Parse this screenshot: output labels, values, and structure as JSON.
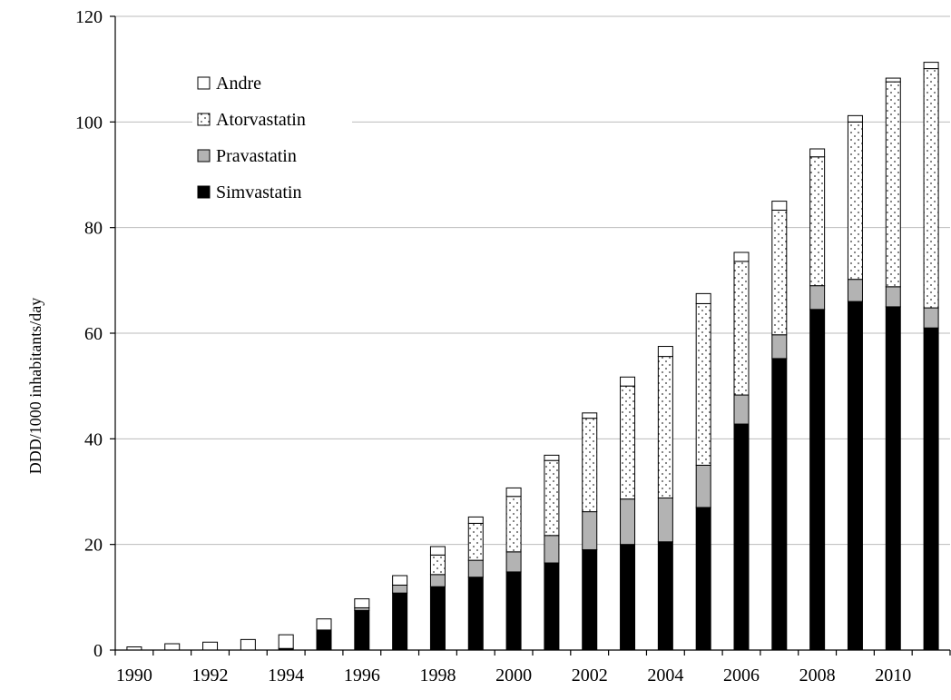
{
  "chart_data": {
    "type": "bar",
    "stacked": true,
    "ylabel": "DDD/1000 inhabitants/day",
    "ylim": [
      0,
      120
    ],
    "yticks": [
      0,
      20,
      40,
      60,
      80,
      100,
      120
    ],
    "grid": true,
    "legend_position": "top-left",
    "categories": [
      "1990",
      "1991",
      "1992",
      "1993",
      "1994",
      "1995",
      "1996",
      "1997",
      "1998",
      "1999",
      "2000",
      "2001",
      "2002",
      "2003",
      "2004",
      "2005",
      "2006",
      "2007",
      "2008",
      "2009",
      "2010",
      "2011"
    ],
    "xtick_labels": [
      "1990",
      "",
      "1992",
      "",
      "1994",
      "",
      "1996",
      "",
      "1998",
      "",
      "2000",
      "",
      "2002",
      "",
      "2004",
      "",
      "2006",
      "",
      "2008",
      "",
      "2010",
      ""
    ],
    "legend_order": [
      "Andre",
      "Atorvastatin",
      "Pravastatin",
      "Simvastatin"
    ],
    "series": [
      {
        "name": "Simvastatin",
        "pattern": "solid-black",
        "values": [
          0,
          0,
          0,
          0,
          0.3,
          3.8,
          7.5,
          10.8,
          12.0,
          13.8,
          14.8,
          16.5,
          19.0,
          20.0,
          20.5,
          27.0,
          42.8,
          55.2,
          64.5,
          66.0,
          65.0,
          61.0
        ]
      },
      {
        "name": "Pravastatin",
        "pattern": "solid-gray",
        "values": [
          0,
          0,
          0,
          0,
          0,
          0,
          0.5,
          1.5,
          2.3,
          3.2,
          3.8,
          5.2,
          7.2,
          8.6,
          8.3,
          8.0,
          5.5,
          4.5,
          4.5,
          4.2,
          3.8,
          3.8
        ]
      },
      {
        "name": "Atorvastatin",
        "pattern": "dotted",
        "values": [
          0,
          0,
          0,
          0,
          0,
          0,
          0,
          0,
          3.7,
          7.0,
          10.5,
          14.2,
          17.7,
          21.4,
          26.8,
          30.6,
          25.3,
          23.6,
          24.4,
          29.8,
          38.8,
          45.3
        ]
      },
      {
        "name": "Andre",
        "pattern": "white",
        "values": [
          0.6,
          1.2,
          1.5,
          2.0,
          2.6,
          2.1,
          1.7,
          1.8,
          1.6,
          1.2,
          1.6,
          1.0,
          1.0,
          1.7,
          1.9,
          1.9,
          1.7,
          1.7,
          1.5,
          1.2,
          0.7,
          1.2
        ]
      }
    ],
    "colors": {
      "simvastatin": "#000000",
      "pravastatin": "#b3b3b3",
      "andre": "#ffffff",
      "grid": "#bbbbbb",
      "axis": "#000000"
    }
  }
}
